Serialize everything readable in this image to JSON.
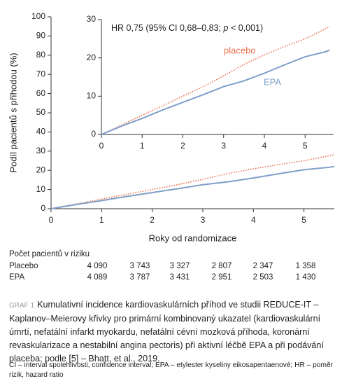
{
  "chart_data": [
    {
      "type": "line",
      "ylabel": "Podíl pacientů s příhodou (%)",
      "xlabel": "Roky od randomizace",
      "x": [
        0,
        0.5,
        1,
        1.5,
        2,
        2.5,
        3,
        3.5,
        4,
        4.5,
        5,
        5.5,
        5.6
      ],
      "series": [
        {
          "color": "#e8704e",
          "style": "dotted",
          "values": [
            0,
            2.5,
            5,
            7.5,
            10,
            12.5,
            15.3,
            18.3,
            20.8,
            23,
            25,
            27.6,
            28.2
          ]
        },
        {
          "color": "#7f9fc8",
          "style": "solid",
          "values": [
            0,
            2.2,
            4.2,
            6.4,
            8.4,
            10.4,
            12.5,
            14,
            16,
            18.2,
            20.3,
            21.6,
            22
          ]
        }
      ],
      "xlim": [
        0,
        5.6
      ],
      "ylim": [
        0,
        100
      ],
      "xticks": [
        0,
        1,
        2,
        3,
        4,
        5
      ],
      "yticks": [
        0,
        10,
        20,
        30,
        40,
        50,
        60,
        70,
        80,
        90,
        100
      ],
      "grid": false
    },
    {
      "type": "line",
      "annotation": [
        "HR 0,75 (95% CI 0,68–0,83; ",
        "p",
        " < 0,001)"
      ],
      "x": [
        0,
        0.5,
        1,
        1.5,
        2,
        2.5,
        3,
        3.5,
        4,
        4.5,
        5,
        5.5,
        5.6
      ],
      "series": [
        {
          "name": "placebo",
          "color": "#e8704e",
          "style": "dotted",
          "values": [
            0,
            2.5,
            5,
            7.5,
            10,
            12.5,
            15.3,
            18.3,
            20.8,
            23,
            25,
            27.6,
            28.2
          ]
        },
        {
          "name": "EPA",
          "color": "#7f9fc8",
          "style": "solid",
          "values": [
            0,
            2.2,
            4.2,
            6.4,
            8.4,
            10.4,
            12.5,
            14,
            16,
            18.2,
            20.3,
            21.6,
            22
          ]
        }
      ],
      "xlim": [
        0,
        5.7
      ],
      "ylim": [
        0,
        30
      ],
      "xticks": [
        0,
        1,
        2,
        3,
        4,
        5
      ],
      "yticks": [
        0,
        10,
        20,
        30
      ],
      "grid": false
    }
  ],
  "risk_table": {
    "title": "Počet pacientů v riziku",
    "rows": [
      {
        "label": "Placebo",
        "values": [
          "4 090",
          "3 743",
          "3 327",
          "2 807",
          "2 347",
          "1 358"
        ]
      },
      {
        "label": "EPA",
        "values": [
          "4 089",
          "3 787",
          "3 431",
          "2 951",
          "2 503",
          "1 430"
        ]
      }
    ]
  },
  "caption": {
    "label": "GRAF 1",
    "text": "Kumulativní incidence kardiovaskulárních příhod ve studii REDUCE-IT – Kaplanov–Meierovy křivky pro primární kombinovaný ukazatel (kardiovaskulární úmrtí, nefatální infarkt myokardu, nefatální cévní mozková příhoda, koronární revaskularizace a nestabilní angina pectoris) při aktivní léčbě EPA a při podávání placeba; podle [5] – Bhatt, et al., 2019."
  },
  "footnote": "CI – interval spolehlivosti, confidence interval; EPA – etylester kyseliny eikosapentaenové; HR – poměr rizik, hazard ratio"
}
